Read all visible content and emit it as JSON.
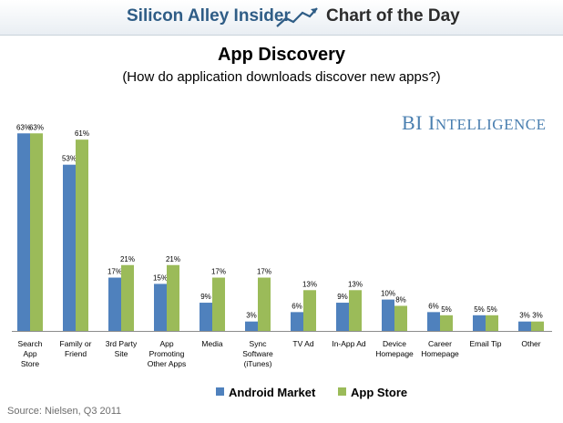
{
  "banner": {
    "left_text": "Silicon Alley Insider",
    "right_text": "Chart of the Day"
  },
  "brand": {
    "first_letters": "BI",
    "rest_initial": "I",
    "rest": "NTELLIGENCE"
  },
  "source": "Source: Nielsen, Q3 2011",
  "colors": {
    "android": "#4f81bd",
    "appstore": "#9bbb59",
    "banner_blue": "#2f5d86",
    "brand": "#4a7fb0"
  },
  "chart_data": {
    "type": "bar",
    "title": "App Discovery",
    "subtitle": "(How do application downloads discover new apps?)",
    "xlabel": "",
    "ylabel": "",
    "ylim": [
      0,
      65
    ],
    "grid": false,
    "legend_position": "bottom",
    "categories": [
      [
        "Search",
        "App",
        "Store"
      ],
      [
        "Family or",
        "Friend"
      ],
      [
        "3rd Party",
        "Site"
      ],
      [
        "App",
        "Promoting",
        "Other Apps"
      ],
      [
        "Media"
      ],
      [
        "Sync",
        "Software",
        "(iTunes)"
      ],
      [
        "TV Ad"
      ],
      [
        "In-App Ad"
      ],
      [
        "Device",
        "Homepage"
      ],
      [
        "Career",
        "Homepage"
      ],
      [
        "Email Tip"
      ],
      [
        "Other"
      ]
    ],
    "series": [
      {
        "name": "Android Market",
        "color": "#4f81bd",
        "values": [
          63,
          53,
          17,
          15,
          9,
          3,
          6,
          9,
          10,
          6,
          5,
          3
        ]
      },
      {
        "name": "App Store",
        "color": "#9bbb59",
        "values": [
          63,
          61,
          21,
          21,
          17,
          17,
          13,
          13,
          8,
          5,
          5,
          3
        ]
      }
    ]
  }
}
